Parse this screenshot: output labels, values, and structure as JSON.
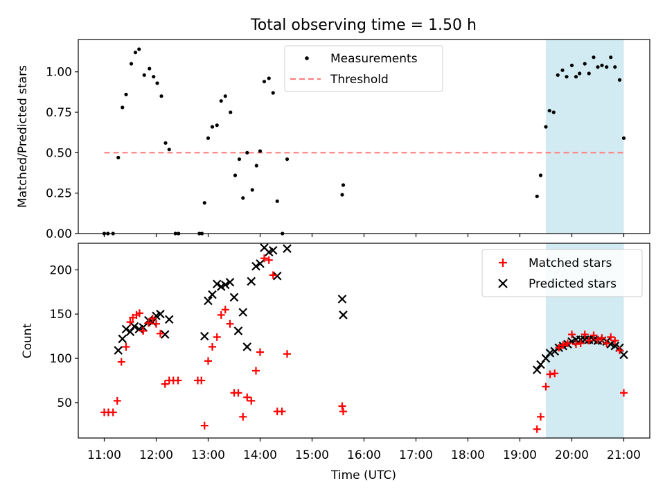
{
  "figure": {
    "title": "Total observing time = 1.50 h",
    "xlabel": "Time (UTC)",
    "xticks": [
      "11:00",
      "12:00",
      "13:00",
      "14:00",
      "15:00",
      "16:00",
      "17:00",
      "18:00",
      "19:00",
      "20:00",
      "21:00"
    ]
  },
  "colors": {
    "highlight": "#add8e6",
    "threshold": "#ff7f7f",
    "measurement": "#000000",
    "matched": "#ff0000",
    "predicted": "#000000"
  },
  "chart_data": [
    {
      "type": "scatter",
      "ylabel": "Matched/Predicted stars",
      "xlim_hours": [
        10.5,
        21.5
      ],
      "ylim": [
        0,
        1.2
      ],
      "yticks": [
        "0.00",
        "0.25",
        "0.50",
        "0.75",
        "1.00"
      ],
      "highlight_span_hours": [
        19.5,
        21.0
      ],
      "legend_position": "top-center",
      "threshold": {
        "name": "Threshold",
        "y": 0.5,
        "x_range_hours": [
          11.0,
          21.0
        ],
        "style": "dashed"
      },
      "series": [
        {
          "name": "Measurements",
          "points": [
            [
              11.0,
              0.0
            ],
            [
              11.07,
              0.0
            ],
            [
              11.17,
              0.0
            ],
            [
              11.27,
              0.47
            ],
            [
              11.35,
              0.78
            ],
            [
              11.42,
              0.86
            ],
            [
              11.52,
              1.05
            ],
            [
              11.6,
              1.12
            ],
            [
              11.67,
              1.14
            ],
            [
              11.77,
              0.98
            ],
            [
              11.87,
              1.02
            ],
            [
              11.95,
              0.97
            ],
            [
              12.02,
              0.93
            ],
            [
              12.1,
              0.85
            ],
            [
              12.18,
              0.56
            ],
            [
              12.25,
              0.52
            ],
            [
              12.37,
              0.0
            ],
            [
              12.43,
              0.0
            ],
            [
              12.83,
              0.0
            ],
            [
              12.88,
              0.0
            ],
            [
              12.93,
              0.19
            ],
            [
              13.0,
              0.59
            ],
            [
              13.08,
              0.66
            ],
            [
              13.17,
              0.67
            ],
            [
              13.25,
              0.82
            ],
            [
              13.33,
              0.85
            ],
            [
              13.43,
              0.75
            ],
            [
              13.52,
              0.36
            ],
            [
              13.6,
              0.46
            ],
            [
              13.67,
              0.22
            ],
            [
              13.75,
              0.5
            ],
            [
              13.85,
              0.27
            ],
            [
              13.93,
              0.42
            ],
            [
              14.0,
              0.51
            ],
            [
              14.08,
              0.94
            ],
            [
              14.17,
              0.96
            ],
            [
              14.25,
              0.87
            ],
            [
              14.33,
              0.2
            ],
            [
              14.43,
              0.0
            ],
            [
              14.52,
              0.46
            ],
            [
              15.58,
              0.24
            ],
            [
              15.6,
              0.3
            ],
            [
              19.33,
              0.23
            ],
            [
              19.4,
              0.36
            ],
            [
              19.5,
              0.66
            ],
            [
              19.57,
              0.76
            ],
            [
              19.65,
              0.75
            ],
            [
              19.73,
              0.98
            ],
            [
              19.82,
              1.01
            ],
            [
              19.9,
              0.97
            ],
            [
              20.0,
              1.04
            ],
            [
              20.08,
              0.97
            ],
            [
              20.15,
              0.99
            ],
            [
              20.25,
              1.05
            ],
            [
              20.33,
              0.99
            ],
            [
              20.42,
              1.09
            ],
            [
              20.5,
              1.03
            ],
            [
              20.58,
              1.04
            ],
            [
              20.67,
              1.03
            ],
            [
              20.75,
              1.09
            ],
            [
              20.83,
              1.03
            ],
            [
              20.92,
              0.95
            ],
            [
              21.0,
              0.59
            ]
          ]
        }
      ]
    },
    {
      "type": "scatter",
      "ylabel": "Count",
      "xlim_hours": [
        10.5,
        21.5
      ],
      "ylim": [
        10,
        230
      ],
      "yticks": [
        "50",
        "100",
        "150",
        "200"
      ],
      "highlight_span_hours": [
        19.5,
        21.0
      ],
      "legend_position": "top-right",
      "series": [
        {
          "name": "Matched stars",
          "marker": "plus",
          "points": [
            [
              11.0,
              39
            ],
            [
              11.08,
              39
            ],
            [
              11.17,
              39
            ],
            [
              11.25,
              52
            ],
            [
              11.33,
              96
            ],
            [
              11.42,
              113
            ],
            [
              11.5,
              141
            ],
            [
              11.55,
              146
            ],
            [
              11.62,
              149
            ],
            [
              11.68,
              151
            ],
            [
              11.75,
              131
            ],
            [
              11.85,
              140
            ],
            [
              11.93,
              145
            ],
            [
              12.0,
              139
            ],
            [
              12.08,
              128
            ],
            [
              12.17,
              71
            ],
            [
              12.25,
              75
            ],
            [
              12.33,
              75
            ],
            [
              12.42,
              75
            ],
            [
              12.8,
              75
            ],
            [
              12.87,
              75
            ],
            [
              12.93,
              24
            ],
            [
              13.0,
              97
            ],
            [
              13.08,
              113
            ],
            [
              13.17,
              124
            ],
            [
              13.25,
              149
            ],
            [
              13.33,
              155
            ],
            [
              13.42,
              139
            ],
            [
              13.5,
              61
            ],
            [
              13.58,
              61
            ],
            [
              13.67,
              34
            ],
            [
              13.75,
              56
            ],
            [
              13.83,
              52
            ],
            [
              13.92,
              86
            ],
            [
              14.0,
              107
            ],
            [
              14.08,
              213
            ],
            [
              14.17,
              211
            ],
            [
              14.25,
              194
            ],
            [
              14.33,
              40
            ],
            [
              14.42,
              40
            ],
            [
              14.52,
              105
            ],
            [
              15.58,
              46
            ],
            [
              15.6,
              40
            ],
            [
              19.33,
              20
            ],
            [
              19.4,
              34
            ],
            [
              19.5,
              68
            ],
            [
              19.58,
              82
            ],
            [
              19.67,
              83
            ],
            [
              19.75,
              112
            ],
            [
              19.83,
              115
            ],
            [
              19.92,
              117
            ],
            [
              20.0,
              127
            ],
            [
              20.08,
              116
            ],
            [
              20.17,
              117
            ],
            [
              20.25,
              127
            ],
            [
              20.33,
              120
            ],
            [
              20.42,
              126
            ],
            [
              20.5,
              121
            ],
            [
              20.58,
              123
            ],
            [
              20.67,
              117
            ],
            [
              20.75,
              124
            ],
            [
              20.83,
              120
            ],
            [
              20.92,
              109
            ],
            [
              21.0,
              61
            ]
          ]
        },
        {
          "name": "Predicted stars",
          "marker": "x",
          "points": [
            [
              11.27,
              109
            ],
            [
              11.35,
              122
            ],
            [
              11.42,
              133
            ],
            [
              11.5,
              130
            ],
            [
              11.58,
              136
            ],
            [
              11.67,
              133
            ],
            [
              11.75,
              135
            ],
            [
              11.85,
              143
            ],
            [
              11.93,
              141
            ],
            [
              12.0,
              148
            ],
            [
              12.08,
              150
            ],
            [
              12.17,
              127
            ],
            [
              12.25,
              144
            ],
            [
              12.93,
              125
            ],
            [
              13.0,
              165
            ],
            [
              13.08,
              172
            ],
            [
              13.17,
              184
            ],
            [
              13.25,
              181
            ],
            [
              13.33,
              183
            ],
            [
              13.42,
              186
            ],
            [
              13.5,
              169
            ],
            [
              13.58,
              131
            ],
            [
              13.67,
              152
            ],
            [
              13.75,
              113
            ],
            [
              13.83,
              187
            ],
            [
              13.92,
              204
            ],
            [
              14.0,
              207
            ],
            [
              14.08,
              225
            ],
            [
              14.17,
              220
            ],
            [
              14.25,
              222
            ],
            [
              14.33,
              193
            ],
            [
              14.52,
              224
            ],
            [
              15.58,
              167
            ],
            [
              15.6,
              149
            ],
            [
              19.33,
              87
            ],
            [
              19.4,
              93
            ],
            [
              19.5,
              100
            ],
            [
              19.58,
              106
            ],
            [
              19.67,
              108
            ],
            [
              19.75,
              112
            ],
            [
              19.83,
              114
            ],
            [
              19.92,
              116
            ],
            [
              20.0,
              119
            ],
            [
              20.08,
              121
            ],
            [
              20.17,
              121
            ],
            [
              20.25,
              121
            ],
            [
              20.33,
              121
            ],
            [
              20.42,
              121
            ],
            [
              20.5,
              120
            ],
            [
              20.58,
              120
            ],
            [
              20.67,
              119
            ],
            [
              20.75,
              116
            ],
            [
              20.83,
              114
            ],
            [
              20.92,
              112
            ],
            [
              21.0,
              104
            ]
          ]
        }
      ]
    }
  ]
}
